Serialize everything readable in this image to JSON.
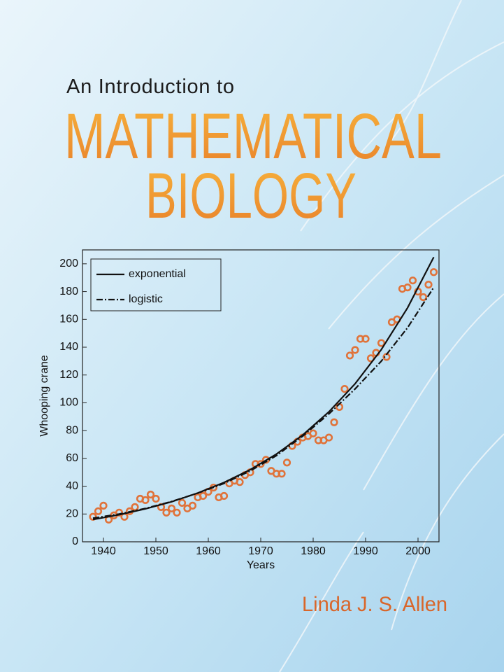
{
  "cover": {
    "subtitle": "An Introduction to",
    "title_line1": "MATHEMATICAL",
    "title_line2": "BIOLOGY",
    "author": "Linda J. S. Allen"
  },
  "chart_data": {
    "type": "scatter",
    "xlabel": "Years",
    "ylabel": "Whooping crane",
    "xlim": [
      1936,
      2004
    ],
    "ylim": [
      0,
      210
    ],
    "xticks": [
      1940,
      1950,
      1960,
      1970,
      1980,
      1990,
      2000
    ],
    "yticks": [
      0,
      20,
      40,
      60,
      80,
      100,
      120,
      140,
      160,
      180,
      200
    ],
    "color": "#e0733a",
    "x": [
      1938,
      1939,
      1940,
      1941,
      1942,
      1943,
      1944,
      1945,
      1946,
      1947,
      1948,
      1949,
      1950,
      1951,
      1952,
      1953,
      1954,
      1955,
      1956,
      1957,
      1958,
      1959,
      1960,
      1961,
      1962,
      1963,
      1964,
      1965,
      1966,
      1967,
      1968,
      1969,
      1970,
      1971,
      1972,
      1973,
      1974,
      1975,
      1976,
      1977,
      1978,
      1979,
      1980,
      1981,
      1982,
      1983,
      1984,
      1985,
      1986,
      1987,
      1988,
      1989,
      1990,
      1991,
      1992,
      1993,
      1994,
      1995,
      1996,
      1997,
      1998,
      1999,
      2000,
      2001,
      2002,
      2003
    ],
    "values": [
      18,
      22,
      26,
      16,
      19,
      21,
      18,
      22,
      25,
      31,
      30,
      34,
      31,
      25,
      21,
      24,
      21,
      28,
      24,
      26,
      32,
      33,
      36,
      39,
      32,
      33,
      42,
      44,
      43,
      48,
      50,
      56,
      56,
      59,
      51,
      49,
      49,
      57,
      69,
      72,
      75,
      76,
      78,
      73,
      73,
      75,
      86,
      97,
      110,
      134,
      138,
      146,
      146,
      132,
      136,
      143,
      133,
      158,
      160,
      182,
      183,
      188,
      180,
      176,
      185,
      194
    ],
    "lines": [
      {
        "name": "exponential",
        "style": "solid",
        "color": "#111111",
        "x": [
          1938,
          1943,
          1948,
          1953,
          1958,
          1963,
          1968,
          1973,
          1978,
          1983,
          1988,
          1993,
          1998,
          2003
        ],
        "values": [
          16,
          19.5,
          23.7,
          28.8,
          35.1,
          42.7,
          51.9,
          63.1,
          76.8,
          93.5,
          113.7,
          138.3,
          168.3,
          204.8
        ]
      },
      {
        "name": "logistic",
        "style": "dashdot",
        "color": "#111111",
        "x": [
          1938,
          1943,
          1948,
          1953,
          1958,
          1963,
          1968,
          1973,
          1978,
          1983,
          1988,
          1993,
          1998,
          2003
        ],
        "values": [
          17,
          20,
          24,
          29,
          35,
          42,
          51,
          62,
          76,
          92,
          110,
          130,
          154,
          183
        ]
      }
    ]
  }
}
